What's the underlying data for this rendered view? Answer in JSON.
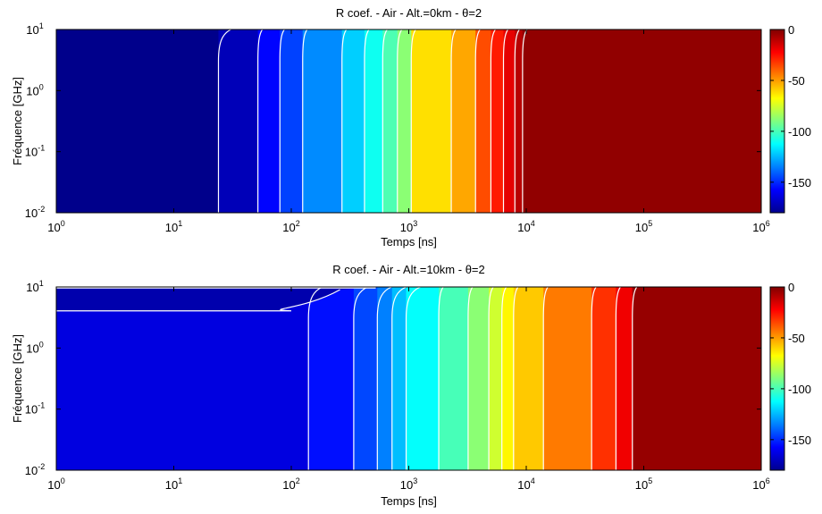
{
  "chart_data": [
    {
      "type": "heatmap",
      "subtype": "filled-contour",
      "title": "R coef. - Air - Alt.=0km - θ=2",
      "xlabel": "Temps [ns]",
      "ylabel": "Fréquence [GHz]",
      "xscale": "log",
      "yscale": "log",
      "xlim": [
        1,
        1000000
      ],
      "ylim": [
        0.01,
        10
      ],
      "x_ticks": [
        1,
        10,
        100,
        1000,
        10000,
        100000,
        1000000
      ],
      "x_tick_labels": [
        [
          "10",
          "0"
        ],
        [
          "10",
          "1"
        ],
        [
          "10",
          "2"
        ],
        [
          "10",
          "3"
        ],
        [
          "10",
          "4"
        ],
        [
          "10",
          "5"
        ],
        [
          "10",
          "6"
        ]
      ],
      "y_ticks": [
        0.01,
        0.1,
        1,
        10
      ],
      "y_tick_labels": [
        [
          "10",
          "-2"
        ],
        [
          "10",
          "-1"
        ],
        [
          "10",
          "0"
        ],
        [
          "10",
          "1"
        ]
      ],
      "colorbar": {
        "range": [
          -180,
          0
        ],
        "ticks": [
          0,
          -50,
          -100,
          -150
        ],
        "tick_labels": [
          "0",
          "-50",
          "-100",
          "-150"
        ],
        "colormap": "jet"
      },
      "levels": [
        {
          "x": 24,
          "value": -170
        },
        {
          "x": 52,
          "value": -157
        },
        {
          "x": 80,
          "value": -146
        },
        {
          "x": 125,
          "value": -133
        },
        {
          "x": 270,
          "value": -121
        },
        {
          "x": 420,
          "value": -110
        },
        {
          "x": 600,
          "value": -99
        },
        {
          "x": 800,
          "value": -88
        },
        {
          "x": 1050,
          "value": -62
        },
        {
          "x": 2300,
          "value": -52
        },
        {
          "x": 3700,
          "value": -36
        },
        {
          "x": 5000,
          "value": -27
        },
        {
          "x": 6400,
          "value": -18
        },
        {
          "x": 8000,
          "value": -10
        },
        {
          "x": 9300,
          "value": -3
        }
      ],
      "right_fill_value": -3,
      "left_fill_value": -178
    },
    {
      "type": "heatmap",
      "subtype": "filled-contour",
      "title": "R coef. - Air - Alt.=10km - θ=2",
      "xlabel": "Temps [ns]",
      "ylabel": "Fréquence [GHz]",
      "xscale": "log",
      "yscale": "log",
      "xlim": [
        1,
        1000000
      ],
      "ylim": [
        0.01,
        10
      ],
      "x_ticks": [
        1,
        10,
        100,
        1000,
        10000,
        100000,
        1000000
      ],
      "x_tick_labels": [
        [
          "10",
          "0"
        ],
        [
          "10",
          "1"
        ],
        [
          "10",
          "2"
        ],
        [
          "10",
          "3"
        ],
        [
          "10",
          "4"
        ],
        [
          "10",
          "5"
        ],
        [
          "10",
          "6"
        ]
      ],
      "y_ticks": [
        0.01,
        0.1,
        1,
        10
      ],
      "y_tick_labels": [
        [
          "10",
          "-2"
        ],
        [
          "10",
          "-1"
        ],
        [
          "10",
          "0"
        ],
        [
          "10",
          "1"
        ]
      ],
      "colorbar": {
        "range": [
          -180,
          0
        ],
        "ticks": [
          0,
          -50,
          -100,
          -150
        ],
        "tick_labels": [
          "0",
          "-50",
          "-100",
          "-150"
        ],
        "colormap": "jet"
      },
      "top_band": {
        "value": -172,
        "freq_low": 4.2,
        "freq_high": 9.0,
        "x_end": 260
      },
      "levels": [
        {
          "x": 140,
          "value": -155
        },
        {
          "x": 340,
          "value": -145
        },
        {
          "x": 540,
          "value": -135
        },
        {
          "x": 720,
          "value": -124
        },
        {
          "x": 950,
          "value": -112
        },
        {
          "x": 1800,
          "value": -100
        },
        {
          "x": 3200,
          "value": -88
        },
        {
          "x": 4800,
          "value": -76
        },
        {
          "x": 6200,
          "value": -66
        },
        {
          "x": 7800,
          "value": -58
        },
        {
          "x": 14000,
          "value": -44
        },
        {
          "x": 36000,
          "value": -31
        },
        {
          "x": 58000,
          "value": -20
        },
        {
          "x": 80000,
          "value": -8
        }
      ],
      "right_fill_value": -4,
      "left_fill_value": -163
    }
  ]
}
